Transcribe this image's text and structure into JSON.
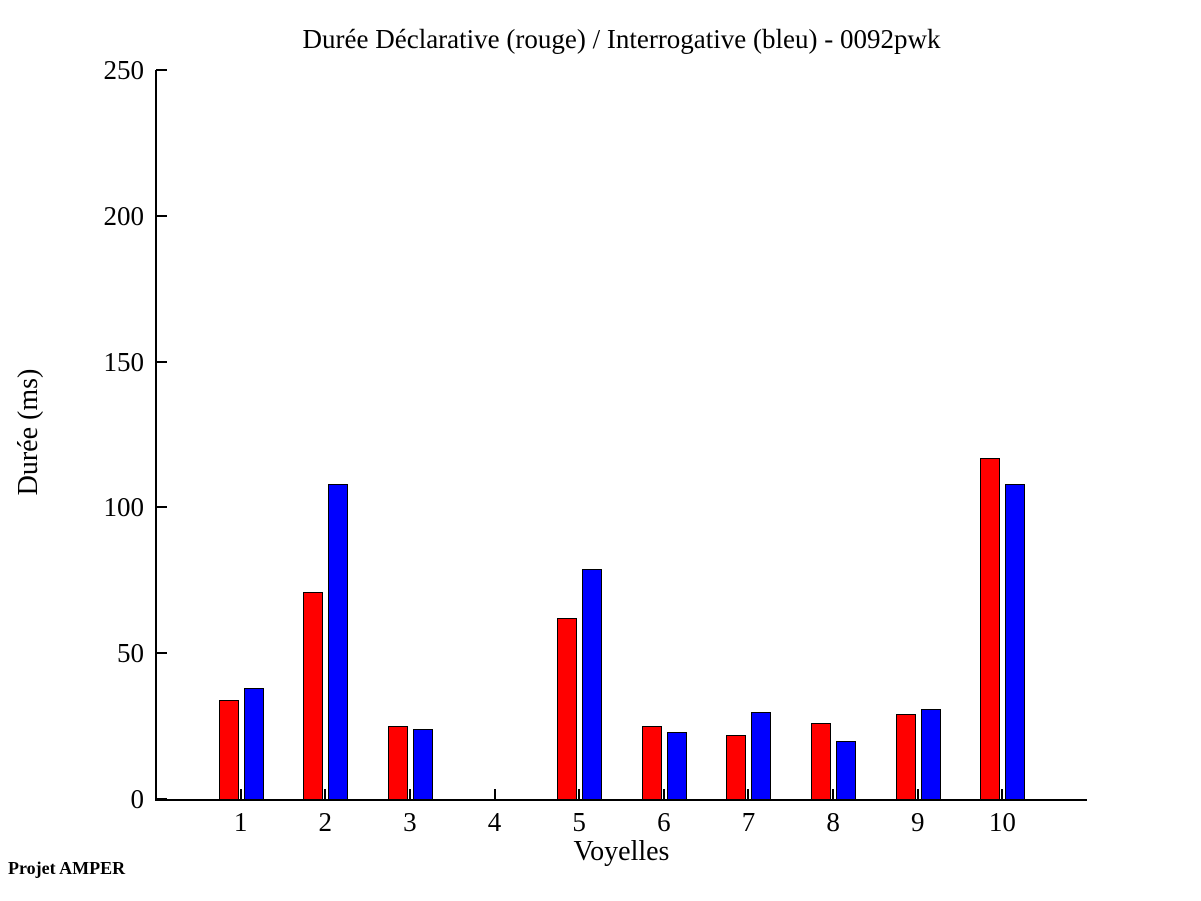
{
  "title": "Durée Déclarative (rouge) / Interrogative (bleu) - 0092pwk",
  "footer": "Projet AMPER",
  "chart_data": {
    "type": "bar",
    "title": "Durée Déclarative (rouge) / Interrogative (bleu) - 0092pwk",
    "xlabel": "Voyelles",
    "ylabel": "Durée (ms)",
    "categories": [
      "1",
      "2",
      "3",
      "4",
      "5",
      "6",
      "7",
      "8",
      "9",
      "10"
    ],
    "series": [
      {
        "name": "Déclarative",
        "color": "#ff0000",
        "values": [
          34,
          71,
          25,
          0,
          62,
          25,
          22,
          26,
          29,
          117
        ]
      },
      {
        "name": "Interrogative",
        "color": "#0000ff",
        "values": [
          38,
          108,
          24,
          0,
          79,
          23,
          30,
          20,
          31,
          108
        ]
      }
    ],
    "ylim": [
      0,
      250
    ],
    "yticks": [
      0,
      50,
      100,
      150,
      200,
      250
    ],
    "grid": false,
    "legend_position": "none"
  }
}
